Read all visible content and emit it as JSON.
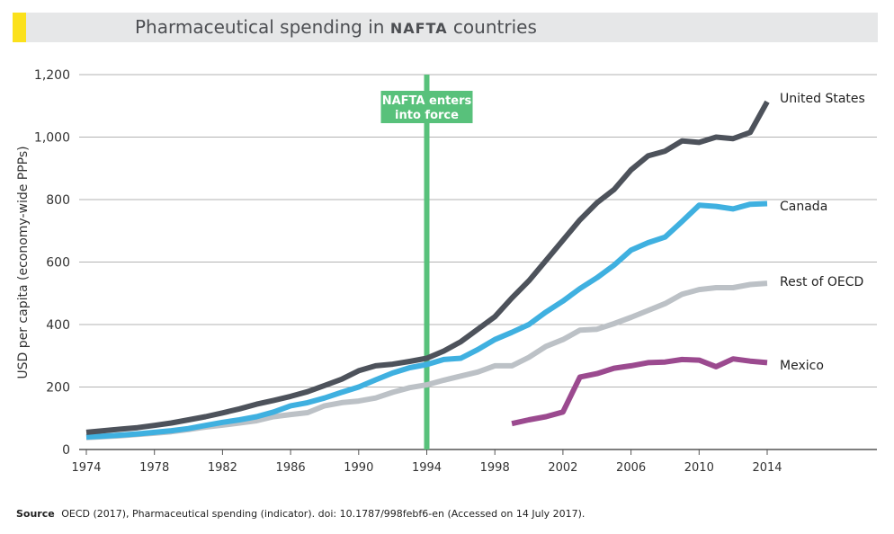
{
  "title": {
    "prefix": "Pharmaceutical spending in ",
    "abbr": "NAFTA",
    "suffix": " countries"
  },
  "footer": {
    "source_label": "Source",
    "source_text": "OECD (2017), Pharmaceutical spending (indicator). doi: 10.1787/998febf6-en (Accessed on 14 July 2017)."
  },
  "colors": {
    "united_states": "#4d525b",
    "canada": "#3fb0e0",
    "rest_of_oecd": "#bcc1c6",
    "mexico": "#9b4a8f",
    "nafta_marker": "#58c17b",
    "gridline": "#9a9a9a"
  },
  "chart_data": {
    "type": "line",
    "title": "Pharmaceutical spending in NAFTA countries",
    "xlabel": "",
    "ylabel": "USD per capita (economy-wide PPPs)",
    "xlim": [
      1974,
      2020
    ],
    "ylim": [
      0,
      1200
    ],
    "xticks": [
      1974,
      1978,
      1982,
      1986,
      1990,
      1994,
      1998,
      2002,
      2006,
      2010,
      2014
    ],
    "yticks": [
      0,
      200,
      400,
      600,
      800,
      1000,
      1200
    ],
    "ytick_labels": [
      "0",
      "200",
      "400",
      "600",
      "800",
      "1,000",
      "1,200"
    ],
    "grid": true,
    "legend": "line-end labels",
    "annotation": {
      "x": 1994,
      "label_line1": "NAFTA enters",
      "label_line2": "into force"
    },
    "series": [
      {
        "name": "United States",
        "color": "#4d525b",
        "x": [
          1974,
          1975,
          1976,
          1977,
          1978,
          1979,
          1980,
          1981,
          1982,
          1983,
          1984,
          1985,
          1986,
          1987,
          1988,
          1989,
          1990,
          1991,
          1992,
          1993,
          1994,
          1995,
          1996,
          1997,
          1998,
          1999,
          2000,
          2001,
          2002,
          2003,
          2004,
          2005,
          2006,
          2007,
          2008,
          2009,
          2010,
          2011,
          2012,
          2013,
          2014
        ],
        "values": [
          55,
          60,
          65,
          70,
          77,
          85,
          95,
          105,
          117,
          130,
          145,
          157,
          170,
          185,
          205,
          225,
          252,
          268,
          273,
          282,
          292,
          315,
          345,
          385,
          425,
          485,
          540,
          605,
          670,
          735,
          790,
          832,
          895,
          940,
          955,
          988,
          983,
          1000,
          995,
          1015,
          1113
        ]
      },
      {
        "name": "Canada",
        "color": "#3fb0e0",
        "x": [
          1974,
          1975,
          1976,
          1977,
          1978,
          1979,
          1980,
          1981,
          1982,
          1983,
          1984,
          1985,
          1986,
          1987,
          1988,
          1989,
          1990,
          1991,
          1992,
          1993,
          1994,
          1995,
          1996,
          1997,
          1998,
          1999,
          2000,
          2001,
          2002,
          2003,
          2004,
          2005,
          2006,
          2007,
          2008,
          2009,
          2010,
          2011,
          2012,
          2013,
          2014
        ],
        "values": [
          40,
          43,
          46,
          50,
          55,
          60,
          67,
          77,
          87,
          95,
          105,
          120,
          140,
          150,
          165,
          183,
          200,
          223,
          245,
          262,
          272,
          288,
          292,
          320,
          352,
          375,
          400,
          440,
          475,
          515,
          550,
          590,
          638,
          662,
          680,
          730,
          782,
          778,
          770,
          785,
          787
        ]
      },
      {
        "name": "Rest of OECD",
        "color": "#bcc1c6",
        "x": [
          1974,
          1975,
          1976,
          1977,
          1978,
          1979,
          1980,
          1981,
          1982,
          1983,
          1984,
          1985,
          1986,
          1987,
          1988,
          1989,
          1990,
          1991,
          1992,
          1993,
          1994,
          1995,
          1996,
          1997,
          1998,
          1999,
          2000,
          2001,
          2002,
          2003,
          2004,
          2005,
          2006,
          2007,
          2008,
          2009,
          2010,
          2011,
          2012,
          2013,
          2014
        ],
        "values": [
          38,
          41,
          44,
          48,
          52,
          57,
          64,
          72,
          78,
          85,
          92,
          105,
          112,
          118,
          140,
          150,
          155,
          165,
          183,
          198,
          207,
          222,
          235,
          248,
          268,
          268,
          295,
          330,
          352,
          382,
          385,
          403,
          423,
          445,
          467,
          497,
          512,
          518,
          518,
          528,
          532
        ]
      },
      {
        "name": "Mexico",
        "color": "#9b4a8f",
        "x": [
          1999,
          2000,
          2001,
          2002,
          2003,
          2004,
          2005,
          2006,
          2007,
          2008,
          2009,
          2010,
          2011,
          2012,
          2013,
          2014
        ],
        "values": [
          83,
          95,
          105,
          120,
          232,
          243,
          260,
          268,
          278,
          280,
          288,
          286,
          265,
          290,
          283,
          278
        ]
      }
    ]
  }
}
